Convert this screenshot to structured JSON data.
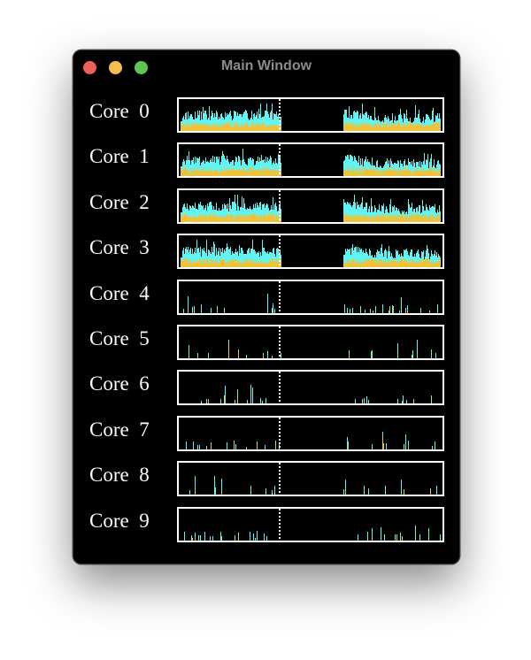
{
  "window": {
    "title": "Main Window",
    "traffic_lights": [
      "close",
      "minimize",
      "maximize"
    ]
  },
  "colors": {
    "background": "#000000",
    "label": "#ffffff",
    "graph_border": "#ffffff",
    "user_load": "#5ff5f5",
    "system_load": "#f0c23a",
    "marker": "#ffffff"
  },
  "cores": [
    {
      "label": "Core  0",
      "activity": "high"
    },
    {
      "label": "Core  1",
      "activity": "high"
    },
    {
      "label": "Core  2",
      "activity": "high"
    },
    {
      "label": "Core  3",
      "activity": "high"
    },
    {
      "label": "Core  4",
      "activity": "low"
    },
    {
      "label": "Core  5",
      "activity": "low"
    },
    {
      "label": "Core  6",
      "activity": "low"
    },
    {
      "label": "Core  7",
      "activity": "low"
    },
    {
      "label": "Core  8",
      "activity": "low"
    },
    {
      "label": "Core  9",
      "activity": "low"
    }
  ]
}
